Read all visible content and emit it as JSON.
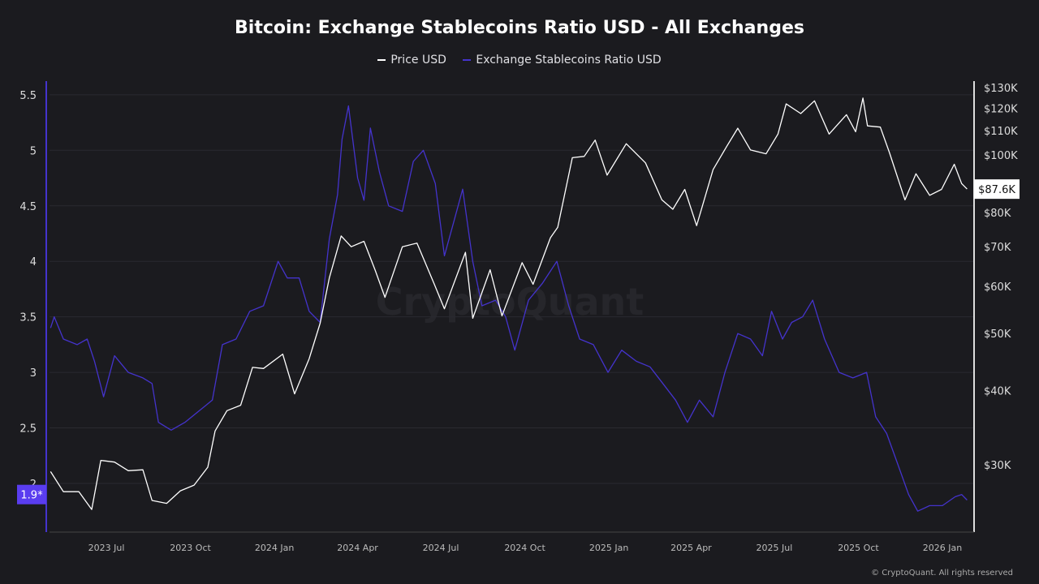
{
  "chart_data": {
    "type": "line",
    "title": "Bitcoin: Exchange Stablecoins Ratio USD - All Exchanges",
    "legend_placement": "top-center",
    "grid": true,
    "watermark": "CryptoQuant",
    "footer": "© CryptoQuant. All rights reserved",
    "x_ticks": [
      "2023 Jul",
      "2023 Oct",
      "2024 Jan",
      "2024 Apr",
      "2024 Jul",
      "2024 Oct",
      "2025 Jan",
      "2025 Apr",
      "2025 Jul",
      "2025 Oct",
      "2026 Jan"
    ],
    "x_tick_dates": [
      "2023-07-01",
      "2023-10-01",
      "2024-01-01",
      "2024-04-01",
      "2024-07-01",
      "2024-10-01",
      "2025-01-01",
      "2025-04-01",
      "2025-07-01",
      "2025-10-01",
      "2026-01-01"
    ],
    "y_left": {
      "ticks": [
        "5.5",
        "5",
        "4.5",
        "4",
        "3.5",
        "3",
        "2.5",
        "2"
      ],
      "range": [
        1.6,
        5.6
      ],
      "current_label": "1.9*"
    },
    "y_right": {
      "scale": "log",
      "ticks": [
        "$130K",
        "$120K",
        "$110K",
        "$100K",
        "$80K",
        "$70K",
        "$60K",
        "$50K",
        "$40K",
        "$30K"
      ],
      "tick_values": [
        130,
        120,
        110,
        100,
        80,
        70,
        60,
        50,
        40,
        30
      ],
      "current_label": "$87.6K"
    },
    "colors": {
      "price": "#ffffff",
      "ratio": "#4433cc",
      "background": "#1b1b1f"
    },
    "series": [
      {
        "name": "Price USD",
        "axis": "right",
        "unit": "K USD",
        "points": [
          [
            "2023-05-01",
            29.2
          ],
          [
            "2023-05-15",
            27.0
          ],
          [
            "2023-06-01",
            27.0
          ],
          [
            "2023-06-15",
            25.2
          ],
          [
            "2023-06-25",
            30.5
          ],
          [
            "2023-07-10",
            30.3
          ],
          [
            "2023-07-25",
            29.3
          ],
          [
            "2023-08-10",
            29.4
          ],
          [
            "2023-08-20",
            26.1
          ],
          [
            "2023-09-05",
            25.8
          ],
          [
            "2023-09-20",
            27.1
          ],
          [
            "2023-10-05",
            27.7
          ],
          [
            "2023-10-20",
            29.7
          ],
          [
            "2023-10-28",
            34.2
          ],
          [
            "2023-11-10",
            37.0
          ],
          [
            "2023-11-25",
            37.8
          ],
          [
            "2023-12-08",
            43.8
          ],
          [
            "2023-12-20",
            43.6
          ],
          [
            "2024-01-10",
            46.1
          ],
          [
            "2024-01-23",
            39.5
          ],
          [
            "2024-02-08",
            45.3
          ],
          [
            "2024-02-20",
            52.0
          ],
          [
            "2024-03-01",
            62.0
          ],
          [
            "2024-03-14",
            73.0
          ],
          [
            "2024-03-25",
            70.0
          ],
          [
            "2024-04-08",
            71.5
          ],
          [
            "2024-04-20",
            64.0
          ],
          [
            "2024-05-01",
            57.5
          ],
          [
            "2024-05-20",
            70.0
          ],
          [
            "2024-06-05",
            71.0
          ],
          [
            "2024-06-24",
            60.5
          ],
          [
            "2024-07-05",
            55.0
          ],
          [
            "2024-07-28",
            68.5
          ],
          [
            "2024-08-05",
            53.0
          ],
          [
            "2024-08-24",
            64.0
          ],
          [
            "2024-09-06",
            53.5
          ],
          [
            "2024-09-28",
            65.8
          ],
          [
            "2024-10-10",
            60.5
          ],
          [
            "2024-10-29",
            72.5
          ],
          [
            "2024-11-06",
            75.5
          ],
          [
            "2024-11-22",
            99.0
          ],
          [
            "2024-12-05",
            99.5
          ],
          [
            "2024-12-17",
            106.0
          ],
          [
            "2024-12-30",
            92.5
          ],
          [
            "2025-01-20",
            104.5
          ],
          [
            "2025-02-10",
            97.0
          ],
          [
            "2025-02-28",
            84.0
          ],
          [
            "2025-03-12",
            81.0
          ],
          [
            "2025-03-25",
            87.5
          ],
          [
            "2025-04-07",
            76.0
          ],
          [
            "2025-04-25",
            94.5
          ],
          [
            "2025-05-10",
            103.5
          ],
          [
            "2025-05-22",
            111.0
          ],
          [
            "2025-06-05",
            102.0
          ],
          [
            "2025-06-22",
            100.5
          ],
          [
            "2025-07-05",
            108.5
          ],
          [
            "2025-07-14",
            122.0
          ],
          [
            "2025-07-30",
            117.5
          ],
          [
            "2025-08-14",
            123.5
          ],
          [
            "2025-08-30",
            108.5
          ],
          [
            "2025-09-18",
            117.0
          ],
          [
            "2025-09-28",
            109.5
          ],
          [
            "2025-10-06",
            124.8
          ],
          [
            "2025-10-11",
            112.0
          ],
          [
            "2025-10-25",
            111.5
          ],
          [
            "2025-11-04",
            101.0
          ],
          [
            "2025-11-21",
            84.0
          ],
          [
            "2025-12-03",
            93.0
          ],
          [
            "2025-12-18",
            85.5
          ],
          [
            "2025-12-31",
            87.5
          ],
          [
            "2026-01-14",
            96.5
          ],
          [
            "2026-01-22",
            89.5
          ],
          [
            "2026-01-28",
            87.6
          ]
        ]
      },
      {
        "name": "Exchange Stablecoins Ratio USD",
        "axis": "left",
        "points": [
          [
            "2023-05-01",
            3.4
          ],
          [
            "2023-05-05",
            3.5
          ],
          [
            "2023-05-15",
            3.3
          ],
          [
            "2023-05-30",
            3.25
          ],
          [
            "2023-06-10",
            3.3
          ],
          [
            "2023-06-18",
            3.1
          ],
          [
            "2023-06-28",
            2.78
          ],
          [
            "2023-07-10",
            3.15
          ],
          [
            "2023-07-25",
            3.0
          ],
          [
            "2023-08-10",
            2.95
          ],
          [
            "2023-08-20",
            2.9
          ],
          [
            "2023-08-27",
            2.55
          ],
          [
            "2023-09-10",
            2.48
          ],
          [
            "2023-09-25",
            2.55
          ],
          [
            "2023-10-10",
            2.65
          ],
          [
            "2023-10-25",
            2.75
          ],
          [
            "2023-11-05",
            3.25
          ],
          [
            "2023-11-20",
            3.3
          ],
          [
            "2023-12-05",
            3.55
          ],
          [
            "2023-12-20",
            3.6
          ],
          [
            "2024-01-05",
            4.0
          ],
          [
            "2024-01-15",
            3.85
          ],
          [
            "2024-01-28",
            3.85
          ],
          [
            "2024-02-08",
            3.55
          ],
          [
            "2024-02-20",
            3.45
          ],
          [
            "2024-03-01",
            4.2
          ],
          [
            "2024-03-10",
            4.6
          ],
          [
            "2024-03-15",
            5.1
          ],
          [
            "2024-03-22",
            5.4
          ],
          [
            "2024-04-01",
            4.75
          ],
          [
            "2024-04-08",
            4.55
          ],
          [
            "2024-04-15",
            5.2
          ],
          [
            "2024-04-25",
            4.8
          ],
          [
            "2024-05-05",
            4.5
          ],
          [
            "2024-05-20",
            4.45
          ],
          [
            "2024-06-01",
            4.9
          ],
          [
            "2024-06-12",
            5.0
          ],
          [
            "2024-06-25",
            4.7
          ],
          [
            "2024-07-05",
            4.05
          ],
          [
            "2024-07-15",
            4.35
          ],
          [
            "2024-07-25",
            4.65
          ],
          [
            "2024-08-05",
            4.0
          ],
          [
            "2024-08-15",
            3.6
          ],
          [
            "2024-08-30",
            3.65
          ],
          [
            "2024-09-10",
            3.5
          ],
          [
            "2024-09-20",
            3.2
          ],
          [
            "2024-10-05",
            3.65
          ],
          [
            "2024-10-20",
            3.8
          ],
          [
            "2024-11-05",
            4.0
          ],
          [
            "2024-11-18",
            3.6
          ],
          [
            "2024-11-30",
            3.3
          ],
          [
            "2024-12-15",
            3.25
          ],
          [
            "2024-12-31",
            3.0
          ],
          [
            "2025-01-15",
            3.2
          ],
          [
            "2025-01-31",
            3.1
          ],
          [
            "2025-02-15",
            3.05
          ],
          [
            "2025-03-01",
            2.9
          ],
          [
            "2025-03-15",
            2.75
          ],
          [
            "2025-03-28",
            2.55
          ],
          [
            "2025-04-10",
            2.75
          ],
          [
            "2025-04-25",
            2.6
          ],
          [
            "2025-05-08",
            3.0
          ],
          [
            "2025-05-22",
            3.35
          ],
          [
            "2025-06-05",
            3.3
          ],
          [
            "2025-06-18",
            3.15
          ],
          [
            "2025-06-28",
            3.55
          ],
          [
            "2025-07-10",
            3.3
          ],
          [
            "2025-07-20",
            3.45
          ],
          [
            "2025-08-01",
            3.5
          ],
          [
            "2025-08-12",
            3.65
          ],
          [
            "2025-08-25",
            3.3
          ],
          [
            "2025-09-10",
            3.0
          ],
          [
            "2025-09-25",
            2.95
          ],
          [
            "2025-10-10",
            3.0
          ],
          [
            "2025-10-20",
            2.6
          ],
          [
            "2025-11-01",
            2.45
          ],
          [
            "2025-11-12",
            2.2
          ],
          [
            "2025-11-25",
            1.9
          ],
          [
            "2025-12-05",
            1.75
          ],
          [
            "2025-12-18",
            1.8
          ],
          [
            "2026-01-01",
            1.8
          ],
          [
            "2026-01-15",
            1.88
          ],
          [
            "2026-01-22",
            1.9
          ],
          [
            "2026-01-28",
            1.85
          ]
        ]
      }
    ]
  }
}
